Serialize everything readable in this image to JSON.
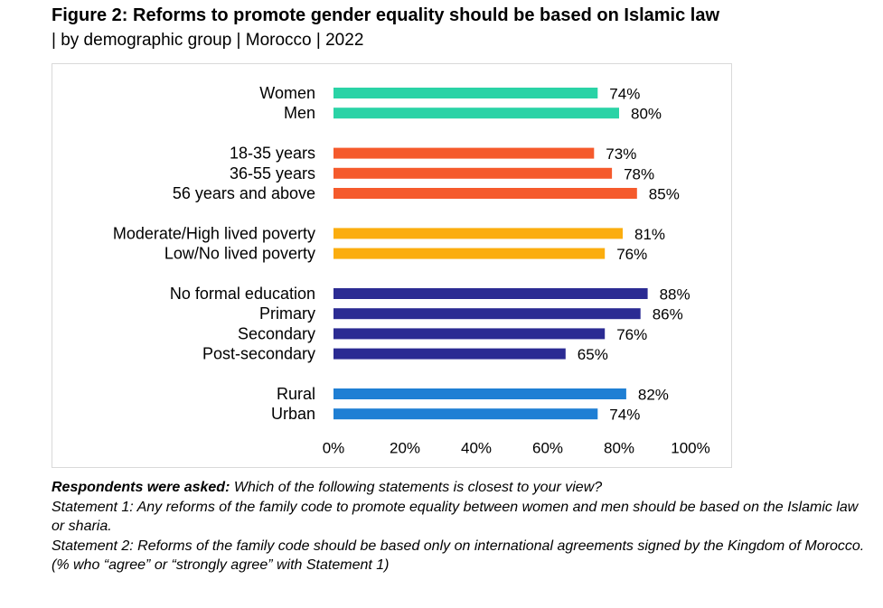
{
  "title": "Figure 2: Reforms to promote gender equality should be based on Islamic law",
  "subtitle": "| by demographic group | Morocco | 2022",
  "colors": {
    "gender": "#2ad3a6",
    "age": "#f55a2c",
    "poverty": "#fbad0e",
    "education": "#2b2b93",
    "location": "#1f7fd4"
  },
  "chart_data": {
    "type": "bar",
    "orientation": "horizontal",
    "xlim": [
      0,
      100
    ],
    "xticks": [
      "0%",
      "20%",
      "40%",
      "60%",
      "80%",
      "100%"
    ],
    "grid": false,
    "groups": [
      {
        "name": "gender",
        "color": "#2ad3a6",
        "items": [
          {
            "label": "Women",
            "value": 74,
            "value_label": "74%"
          },
          {
            "label": "Men",
            "value": 80,
            "value_label": "80%"
          }
        ]
      },
      {
        "name": "age",
        "color": "#f55a2c",
        "items": [
          {
            "label": "18-35 years",
            "value": 73,
            "value_label": "73%"
          },
          {
            "label": "36-55 years",
            "value": 78,
            "value_label": "78%"
          },
          {
            "label": "56 years and above",
            "value": 85,
            "value_label": "85%"
          }
        ]
      },
      {
        "name": "poverty",
        "color": "#fbad0e",
        "items": [
          {
            "label": "Moderate/High lived poverty",
            "value": 81,
            "value_label": "81%"
          },
          {
            "label": "Low/No lived poverty",
            "value": 76,
            "value_label": "76%"
          }
        ]
      },
      {
        "name": "education",
        "color": "#2b2b93",
        "items": [
          {
            "label": "No formal education",
            "value": 88,
            "value_label": "88%"
          },
          {
            "label": "Primary",
            "value": 86,
            "value_label": "86%"
          },
          {
            "label": "Secondary",
            "value": 76,
            "value_label": "76%"
          },
          {
            "label": "Post-secondary",
            "value": 65,
            "value_label": "65%"
          }
        ]
      },
      {
        "name": "location",
        "color": "#1f7fd4",
        "items": [
          {
            "label": "Rural",
            "value": 82,
            "value_label": "82%"
          },
          {
            "label": "Urban",
            "value": 74,
            "value_label": "74%"
          }
        ]
      }
    ]
  },
  "notes": {
    "question_prefix": "Respondents were asked:",
    "question_text": " Which of the following statements is closest to your view?",
    "statement1": "Statement 1: Any reforms of the family code to promote equality between women and men should be based on the Islamic law or sharia.",
    "statement2": "Statement 2: Reforms of the family code should be based only on international agreements signed by the Kingdom of Morocco.",
    "footnote": "(% who “agree” or “strongly agree” with Statement 1)"
  }
}
